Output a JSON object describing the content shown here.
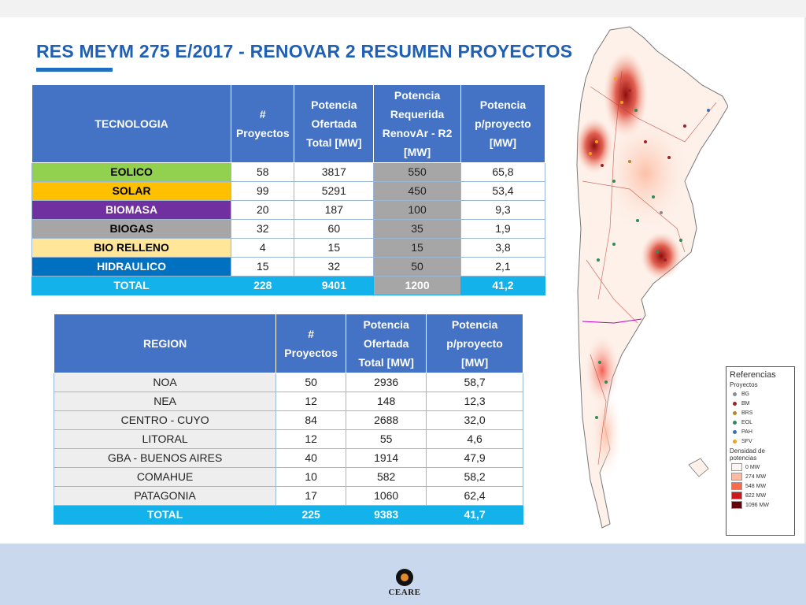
{
  "title": "RES MEYM 275 E/2017 -  RENOVAR 2 RESUMEN PROYECTOS",
  "tech_table": {
    "headers": [
      "TECNOLOGIA",
      "#\nProyectos",
      "Potencia\nOfertada\nTotal [MW]",
      "Potencia\nRequerida\nRenovAr - R2\n[MW]",
      "Potencia\np/proyecto\n[MW]"
    ],
    "rows": [
      {
        "label": "EOLICO",
        "color": "#92d050",
        "textColor": "#000000",
        "values": [
          "58",
          "3817",
          "550",
          "65,8"
        ]
      },
      {
        "label": "SOLAR",
        "color": "#ffc000",
        "textColor": "#000000",
        "values": [
          "99",
          "5291",
          "450",
          "53,4"
        ]
      },
      {
        "label": "BIOMASA",
        "color": "#7030a0",
        "textColor": "#ffffff",
        "values": [
          "20",
          "187",
          "100",
          "9,3"
        ]
      },
      {
        "label": "BIOGAS",
        "color": "#a6a6a6",
        "textColor": "#000000",
        "values": [
          "32",
          "60",
          "35",
          "1,9"
        ]
      },
      {
        "label": "BIO RELLENO",
        "color": "#ffe699",
        "textColor": "#000000",
        "values": [
          "4",
          "15",
          "15",
          "3,8"
        ]
      },
      {
        "label": "HIDRAULICO",
        "color": "#0070c0",
        "textColor": "#ffffff",
        "values": [
          "15",
          "32",
          "50",
          "2,1"
        ]
      }
    ],
    "total": {
      "label": "TOTAL",
      "values": [
        "228",
        "9401",
        "1200",
        "41,2"
      ]
    }
  },
  "region_table": {
    "headers": [
      "REGION",
      "#\nProyectos",
      "Potencia\nOfertada\nTotal [MW]",
      "Potencia\np/proyecto\n[MW]"
    ],
    "rows": [
      {
        "label": "NOA",
        "values": [
          "50",
          "2936",
          "58,7"
        ]
      },
      {
        "label": "NEA",
        "values": [
          "12",
          "148",
          "12,3"
        ]
      },
      {
        "label": "CENTRO - CUYO",
        "values": [
          "84",
          "2688",
          "32,0"
        ]
      },
      {
        "label": "LITORAL",
        "values": [
          "12",
          "55",
          "4,6"
        ]
      },
      {
        "label": "GBA - BUENOS AIRES",
        "values": [
          "40",
          "1914",
          "47,9"
        ]
      },
      {
        "label": "COMAHUE",
        "values": [
          "10",
          "582",
          "58,2"
        ]
      },
      {
        "label": "PATAGONIA",
        "values": [
          "17",
          "1060",
          "62,4"
        ]
      }
    ],
    "total": {
      "label": "TOTAL",
      "values": [
        "225",
        "9383",
        "41,7"
      ]
    }
  },
  "legend": {
    "title": "Referencias",
    "projects_title": "Proyectos",
    "projects": [
      {
        "code": "BG",
        "color": "#8c8c8c"
      },
      {
        "code": "BM",
        "color": "#a0202a"
      },
      {
        "code": "BRS",
        "color": "#b8862b"
      },
      {
        "code": "EOL",
        "color": "#2e8b57"
      },
      {
        "code": "PAH",
        "color": "#3a6fb0"
      },
      {
        "code": "SFV",
        "color": "#f0a020"
      }
    ],
    "density_title": "Densidad de potencias",
    "density": [
      {
        "label": "0 MW",
        "color": "#fff5f0"
      },
      {
        "label": "274 MW",
        "color": "#fcbba1"
      },
      {
        "label": "548 MW",
        "color": "#fb6a4a"
      },
      {
        "label": "822 MW",
        "color": "#cb181d"
      },
      {
        "label": "1096 MW",
        "color": "#67000d"
      }
    ]
  },
  "logo": {
    "name": "CEARE"
  }
}
